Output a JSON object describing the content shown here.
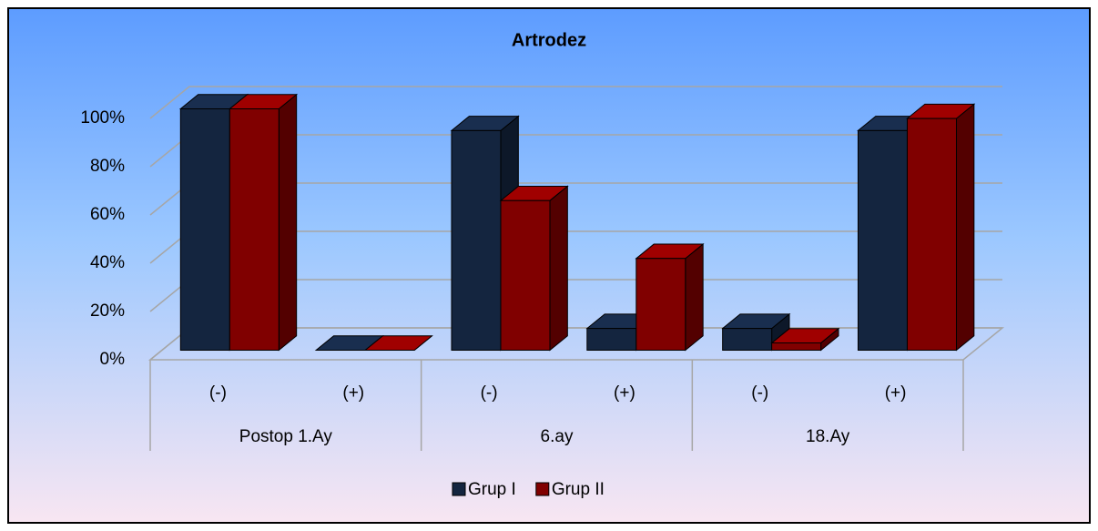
{
  "chart_data": {
    "type": "bar3d",
    "title": "Artrodez",
    "category_groups": [
      "Postop 1.Ay",
      "6.ay",
      "18.Ay"
    ],
    "categories": [
      "(-)",
      "(+)",
      "(-)",
      "(+)",
      "(-)",
      "(+)"
    ],
    "series": [
      {
        "name": "Grup I",
        "color": "#14253f",
        "values": [
          100,
          0,
          91,
          9,
          9,
          91
        ]
      },
      {
        "name": "Grup II",
        "color": "#800000",
        "values": [
          100,
          0,
          62,
          38,
          3,
          96
        ]
      }
    ],
    "ylim": [
      0,
      100
    ],
    "yticks": [
      {
        "value": 0,
        "label": "0%"
      },
      {
        "value": 20,
        "label": "20%"
      },
      {
        "value": 40,
        "label": "40%"
      },
      {
        "value": 60,
        "label": "60%"
      },
      {
        "value": 80,
        "label": "80%"
      },
      {
        "value": 100,
        "label": "100%"
      }
    ],
    "grid": true,
    "legend": "bottom"
  }
}
